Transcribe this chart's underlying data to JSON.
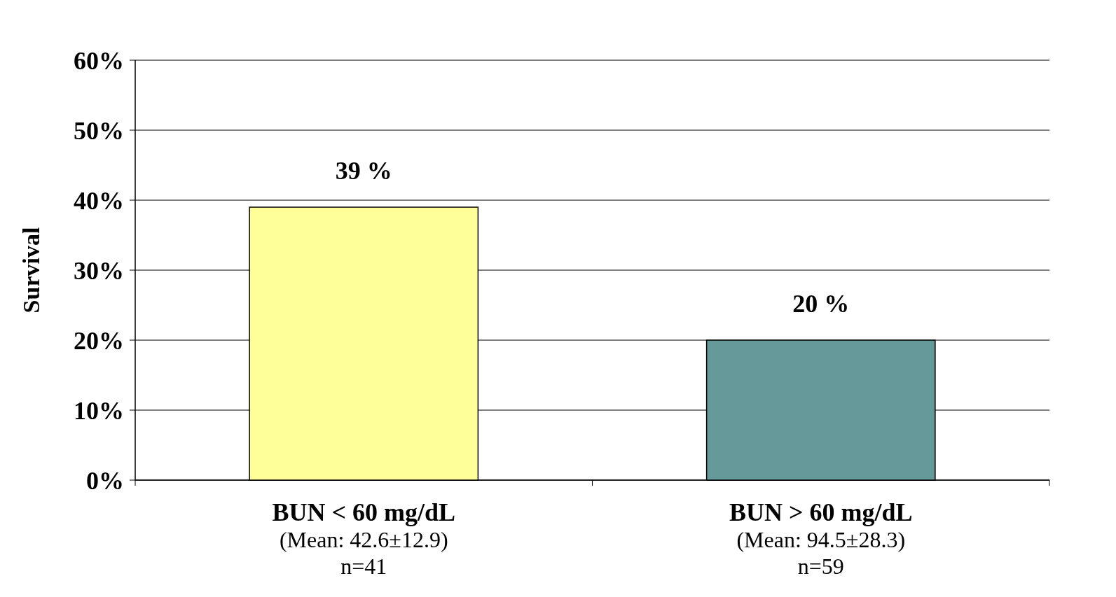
{
  "chart_data": {
    "type": "bar",
    "ylabel": "Survival",
    "categories": [
      "BUN < 60 mg/dL\n(Mean: 42.6±12.9)\nn=41",
      "BUN > 60 mg/dL\n(Mean: 94.5±28.3)\nn=59"
    ],
    "values": [
      39,
      20
    ],
    "colors": [
      "#ffff99",
      "#669999"
    ],
    "value_labels": [
      "39 %",
      "20 %"
    ],
    "ylim": [
      0,
      60
    ],
    "yticks": [
      {
        "value": 0,
        "label": "0%"
      },
      {
        "value": 10,
        "label": "10%"
      },
      {
        "value": 20,
        "label": "20%"
      },
      {
        "value": 30,
        "label": "30%"
      },
      {
        "value": 40,
        "label": "40%"
      },
      {
        "value": 50,
        "label": "50%"
      },
      {
        "value": 60,
        "label": "60%"
      }
    ],
    "grid": "y"
  }
}
